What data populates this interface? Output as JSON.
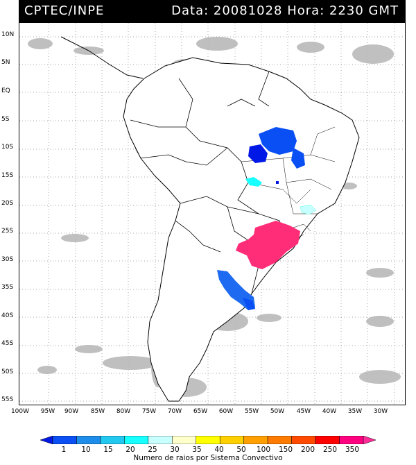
{
  "header": {
    "org": "CPTEC/INPE",
    "stamp": "Data: 20081028 Hora: 2230 GMT"
  },
  "latitude_labels": [
    "10N",
    "5N",
    "EQ",
    "5S",
    "10S",
    "15S",
    "20S",
    "25S",
    "30S",
    "35S",
    "40S",
    "45S",
    "50S",
    "55S"
  ],
  "longitude_labels": [
    "100W",
    "95W",
    "90W",
    "85W",
    "80W",
    "75W",
    "70W",
    "65W",
    "60W",
    "55W",
    "50W",
    "45W",
    "40W",
    "35W",
    "30W"
  ],
  "legend": {
    "title": "Numero de raios por Sistema Convectivo",
    "values": [
      "1",
      "10",
      "15",
      "20",
      "25",
      "30",
      "35",
      "40",
      "50",
      "100",
      "150",
      "200",
      "250",
      "350"
    ],
    "colors": [
      "#0018e6",
      "#0a4ff3",
      "#1e8de9",
      "#22c8f0",
      "#17ffff",
      "#c8ffff",
      "#ffffcc",
      "#ffff00",
      "#ffd000",
      "#ffa000",
      "#ff7b00",
      "#ff4a00",
      "#ff0000",
      "#ff0080",
      "#ff2c9a"
    ]
  },
  "convective_systems": [
    {
      "label": "blue system north-east Brazil",
      "lightning": 10
    },
    {
      "label": "blue system central Brazil",
      "lightning": 1
    },
    {
      "label": "cyan system central Brazil",
      "lightning": 25
    },
    {
      "label": "cyan small system south-east",
      "lightning": 30
    },
    {
      "label": "magenta system southern Brazil",
      "lightning": 350
    },
    {
      "label": "blue system Argentina coast",
      "lightning": 10
    }
  ]
}
